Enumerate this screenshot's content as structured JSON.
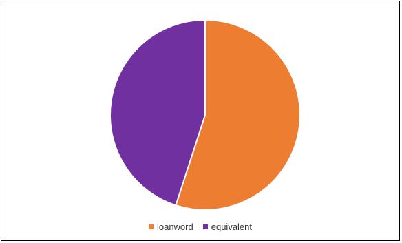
{
  "chart_data": {
    "type": "pie",
    "title": "",
    "start_angle_deg": 0,
    "direction": "clockwise",
    "legend_position": "bottom",
    "slices": [
      {
        "label": "loanword",
        "value": 55,
        "color": "#ED7D31"
      },
      {
        "label": "equivalent",
        "value": 45,
        "color": "#7030A0"
      }
    ]
  }
}
